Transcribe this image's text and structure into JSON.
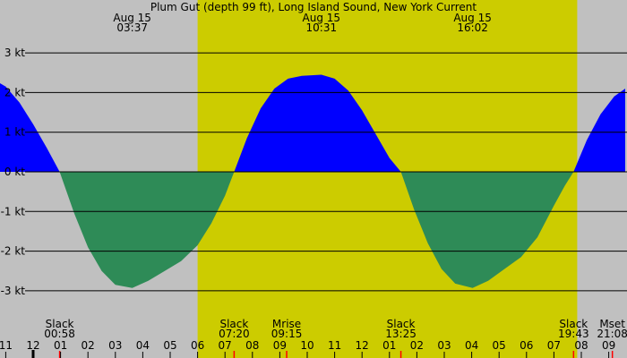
{
  "title": "Plum Gut (depth 99 ft), Long Island Sound, New York Current",
  "colors": {
    "night_bg": "#c0c0c0",
    "day_bg": "#cccc00",
    "flood": "#0000ff",
    "ebb": "#2e8b57",
    "grid": "#000000",
    "event_tick": "#ff0000"
  },
  "top_labels": [
    {
      "date": "Aug 15",
      "time": "03:37",
      "hour": 3.617
    },
    {
      "date": "Aug 15",
      "time": "10:31",
      "hour": 10.517
    },
    {
      "date": "Aug 15",
      "time": "16:02",
      "hour": 16.033
    }
  ],
  "events": [
    {
      "name": "Slack",
      "time": "00:58",
      "hour": 0.967
    },
    {
      "name": "Slack",
      "time": "07:20",
      "hour": 7.333
    },
    {
      "name": "Mrise",
      "time": "09:15",
      "hour": 9.25
    },
    {
      "name": "Slack",
      "time": "13:25",
      "hour": 13.417
    },
    {
      "name": "Slack",
      "time": "19:43",
      "hour": 19.717
    },
    {
      "name": "Mset",
      "time": "21:08",
      "hour": 21.133
    }
  ],
  "chart_data": {
    "type": "area",
    "title": "Plum Gut (depth 99 ft), Long Island Sound, New York Current",
    "xlabel": "",
    "ylabel": "",
    "unit": "kt",
    "x_range_hours": [
      -1.25,
      21.6
    ],
    "ylim": [
      -4.2,
      4.2
    ],
    "y_ticks": [
      3,
      2,
      1,
      0,
      -1,
      -2,
      -3
    ],
    "y_tick_labels": [
      "3 kt",
      "2 kt",
      "1 kt",
      "0 kt",
      "-1 kt",
      "-2 kt",
      "-3 kt"
    ],
    "x_ticks": [
      -1,
      0,
      1,
      2,
      3,
      4,
      5,
      6,
      7,
      8,
      9,
      10,
      11,
      12,
      13,
      14,
      15,
      16,
      17,
      18,
      19,
      20,
      21
    ],
    "x_tick_labels": [
      "11",
      "12",
      "01",
      "02",
      "03",
      "04",
      "05",
      "06",
      "07",
      "08",
      "09",
      "10",
      "11",
      "12",
      "01",
      "02",
      "03",
      "04",
      "05",
      "06",
      "07",
      "08",
      "09"
    ],
    "daylight_hours": [
      6.0,
      19.85
    ],
    "grid": true,
    "series": [
      {
        "x": [
          -1.25,
          -1.0,
          -0.5,
          0.0,
          0.5,
          0.967,
          1.5,
          2.0,
          2.5,
          3.0,
          3.617,
          4.2,
          4.8,
          5.4,
          6.0,
          6.5,
          7.0,
          7.333,
          7.8,
          8.3,
          8.8,
          9.3,
          9.8,
          10.517,
          11.0,
          11.5,
          12.0,
          12.5,
          13.0,
          13.417,
          13.9,
          14.4,
          14.9,
          15.4,
          16.033,
          16.6,
          17.2,
          17.8,
          18.4,
          19.0,
          19.4,
          19.717,
          20.2,
          20.7,
          21.2,
          21.6
        ],
        "y": [
          2.25,
          2.15,
          1.75,
          1.2,
          0.6,
          0.0,
          -1.05,
          -1.9,
          -2.5,
          -2.85,
          -2.93,
          -2.75,
          -2.5,
          -2.25,
          -1.85,
          -1.3,
          -0.6,
          0.0,
          0.85,
          1.6,
          2.1,
          2.35,
          2.42,
          2.45,
          2.35,
          2.05,
          1.55,
          0.95,
          0.35,
          0.0,
          -0.95,
          -1.8,
          -2.45,
          -2.82,
          -2.93,
          -2.75,
          -2.45,
          -2.15,
          -1.65,
          -0.85,
          -0.35,
          0.0,
          0.8,
          1.45,
          1.9,
          2.1
        ]
      }
    ]
  }
}
